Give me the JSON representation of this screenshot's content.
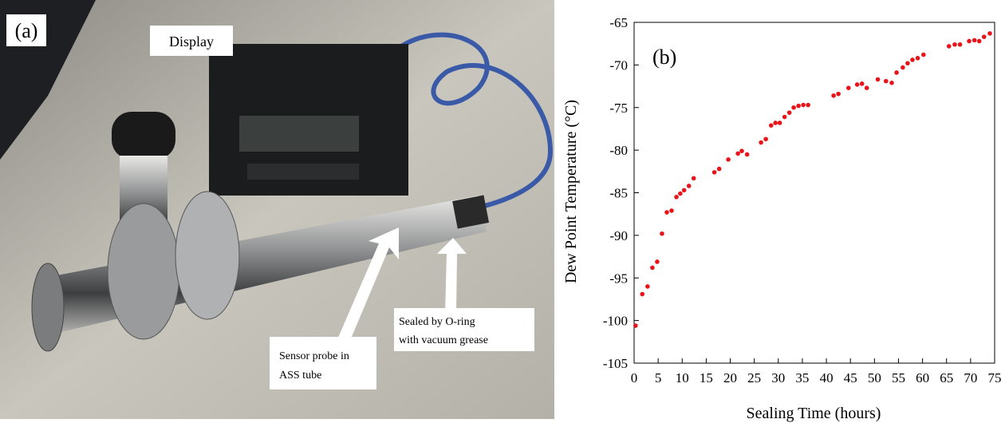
{
  "panel_a": {
    "label": "(a)",
    "display_label": "Display",
    "probe_label": [
      "Sensor probe in",
      "ASS tube"
    ],
    "seal_label": [
      "Sealed by O-ring",
      "with vacuum grease"
    ]
  },
  "chart_data": {
    "type": "scatter",
    "panel_label": "(b)",
    "x_label": "Sealing Time  (hours)",
    "y_label": "Dew Point Temperature  (°C)",
    "color": "#e8141a",
    "x": [
      0.3,
      1.7,
      2.8,
      3.8,
      4.8,
      5.8,
      6.8,
      7.8,
      8.8,
      9.6,
      10.4,
      11.4,
      12.4,
      16.7,
      17.7,
      19.6,
      21.6,
      22.4,
      23.5,
      26.4,
      27.4,
      28.5,
      29.4,
      30.3,
      31.3,
      32.3,
      33.2,
      34.2,
      35.2,
      36.2,
      41.5,
      42.5,
      44.6,
      46.4,
      47.4,
      48.4,
      50.7,
      52.4,
      53.6,
      54.6,
      55.9,
      56.9,
      57.9,
      59.0,
      60.2,
      65.5,
      66.7,
      67.8,
      69.7,
      70.8,
      71.8,
      72.8,
      74.0
    ],
    "y": [
      -100.6,
      -96.9,
      -96.0,
      -93.8,
      -93.1,
      -89.8,
      -87.3,
      -87.1,
      -85.5,
      -85.1,
      -84.7,
      -84.2,
      -83.3,
      -82.6,
      -82.2,
      -81.1,
      -80.4,
      -80.1,
      -80.5,
      -79.1,
      -78.7,
      -77.1,
      -76.8,
      -76.8,
      -76.1,
      -75.6,
      -75.0,
      -74.8,
      -74.7,
      -74.7,
      -73.6,
      -73.4,
      -72.7,
      -72.3,
      -72.2,
      -72.7,
      -71.7,
      -71.9,
      -72.1,
      -70.9,
      -70.3,
      -69.8,
      -69.4,
      -69.2,
      -68.8,
      -67.8,
      -67.6,
      -67.6,
      -67.2,
      -67.1,
      -67.2,
      -66.7,
      -66.3
    ],
    "xlim": [
      0,
      75
    ],
    "xticks": [
      0,
      5,
      10,
      15,
      20,
      25,
      30,
      35,
      40,
      45,
      50,
      55,
      60,
      65,
      70,
      75
    ],
    "ylim": [
      -105,
      -65
    ],
    "yticks": [
      -105,
      -100,
      -95,
      -90,
      -85,
      -80,
      -75,
      -70,
      -65
    ]
  }
}
